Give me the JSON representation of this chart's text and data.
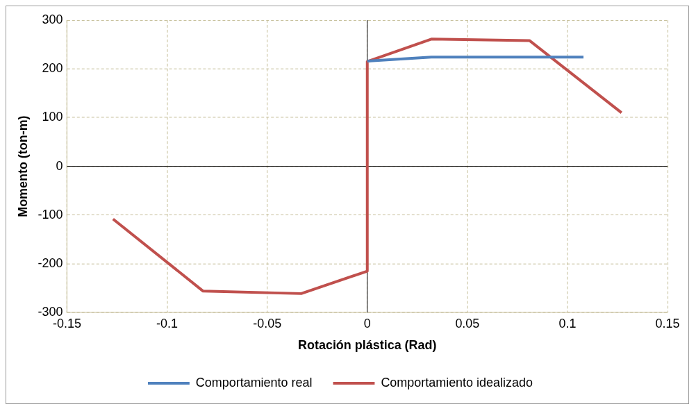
{
  "chart_data": {
    "type": "line",
    "xlabel": "Rotación plástica (Rad)",
    "ylabel": "Momento (ton-m)",
    "xlim": [
      -0.15,
      0.15
    ],
    "xticks": [
      -0.15,
      -0.1,
      -0.05,
      0,
      0.05,
      0.1,
      0.15
    ],
    "ylim": [
      -300,
      300
    ],
    "yticks": [
      -300,
      -200,
      -100,
      0,
      100,
      200,
      300
    ],
    "grid": true,
    "legend": "bottom",
    "marker": "none",
    "line_style": "solid",
    "series": [
      {
        "name": "Comportamiento real",
        "color": "#4f81bd",
        "x": [
          0,
          0.032,
          0.108
        ],
        "values": [
          216,
          224,
          224
        ]
      },
      {
        "name": "Comportamiento idealizado",
        "color": "#c0504d",
        "x": [
          -0.127,
          -0.082,
          -0.033,
          0,
          0,
          0.032,
          0.081,
          0.127
        ],
        "values": [
          -108,
          -256,
          -261,
          -215,
          215,
          261,
          258,
          110
        ]
      }
    ]
  }
}
